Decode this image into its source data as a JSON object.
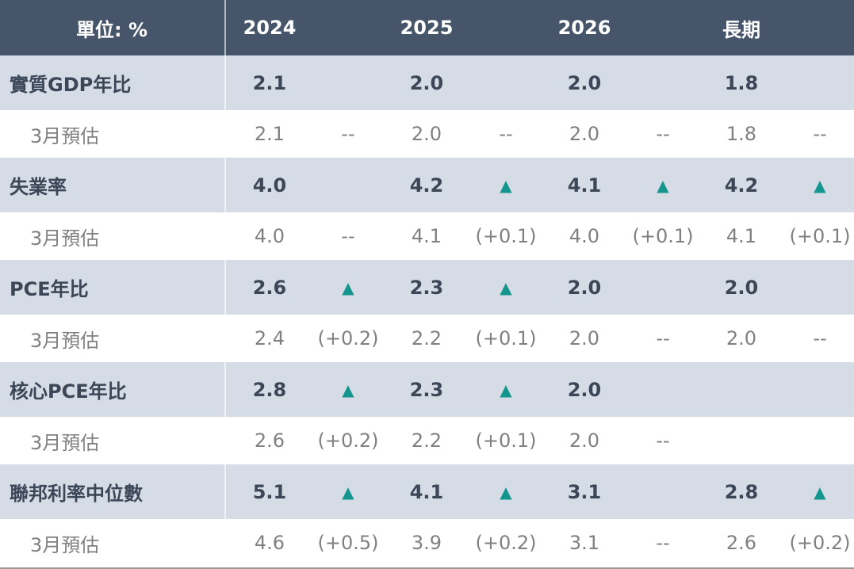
{
  "header": [
    "單位: %",
    "2024",
    "2025",
    "2026",
    "長期"
  ],
  "rows": [
    {
      "label": "實質GDP年比",
      "cells": [
        "2.1",
        null,
        "2.0",
        null,
        "2.0",
        null,
        "1.8",
        null
      ]
    },
    {
      "label": "3月預估",
      "cells": [
        "2.1",
        "--",
        "2.0",
        "--",
        "2.0",
        "--",
        "1.8",
        "--"
      ]
    },
    {
      "label": "失業率",
      "cells": [
        "4.0",
        null,
        "4.2",
        "▲",
        "4.1",
        "▲",
        "4.2",
        "▲"
      ]
    },
    {
      "label": "3月預估",
      "cells": [
        "4.0",
        "--",
        "4.1",
        "(+0.1)",
        "4.0",
        "(+0.1)",
        "4.1",
        "(+0.1)"
      ]
    },
    {
      "label": "PCE年比",
      "cells": [
        "2.6",
        "▲",
        "2.3",
        "▲",
        "2.0",
        null,
        "2.0",
        null
      ]
    },
    {
      "label": "3月預估",
      "cells": [
        "2.4",
        "(+0.2)",
        "2.2",
        "(+0.1)",
        "2.0",
        "--",
        "2.0",
        "--"
      ]
    },
    {
      "label": "核心PCE年比",
      "cells": [
        "2.8",
        "▲",
        "2.3",
        "▲",
        "2.0",
        null,
        null,
        null
      ]
    },
    {
      "label": "3月預估",
      "cells": [
        "2.6",
        "(+0.2)",
        "2.2",
        "(+0.1)",
        "2.0",
        "--",
        null,
        null
      ]
    },
    {
      "label": "聯邦利率中位數",
      "cells": [
        "5.1",
        "▲",
        "4.1",
        "▲",
        "3.1",
        null,
        "2.8",
        "▲"
      ]
    },
    {
      "label": "3月預估",
      "cells": [
        "4.6",
        "(+0.5)",
        "3.9",
        "(+0.2)",
        "3.1",
        "--",
        "2.6",
        "(+0.2)"
      ]
    }
  ]
}
